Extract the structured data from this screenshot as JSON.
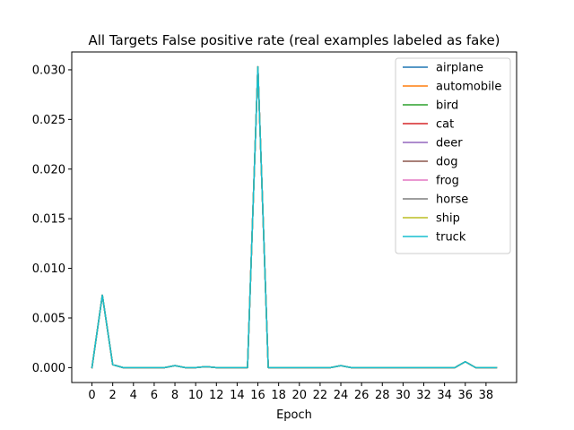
{
  "chart_data": {
    "type": "line",
    "title": "All Targets False positive rate (real examples labeled as fake)",
    "xlabel": "Epoch",
    "ylabel": "",
    "xlim": [
      -1.95,
      40.95
    ],
    "ylim": [
      -0.0015,
      0.0318
    ],
    "x_ticks": [
      0,
      2,
      4,
      6,
      8,
      10,
      12,
      14,
      16,
      18,
      20,
      22,
      24,
      26,
      28,
      30,
      32,
      34,
      36,
      38
    ],
    "y_ticks": [
      0.0,
      0.005,
      0.01,
      0.015,
      0.02,
      0.025,
      0.03
    ],
    "y_tick_labels": [
      "0.000",
      "0.005",
      "0.010",
      "0.015",
      "0.020",
      "0.025",
      "0.030"
    ],
    "grid": false,
    "legend_position": "top-right",
    "x": [
      0,
      1,
      2,
      3,
      4,
      5,
      6,
      7,
      8,
      9,
      10,
      11,
      12,
      13,
      14,
      15,
      16,
      17,
      18,
      19,
      20,
      21,
      22,
      23,
      24,
      25,
      26,
      27,
      28,
      29,
      30,
      31,
      32,
      33,
      34,
      35,
      36,
      37,
      38,
      39
    ],
    "series": [
      {
        "name": "airplane",
        "color": "#1f77b4",
        "values": [
          0,
          0.0073,
          0.0003,
          0,
          0,
          0,
          0,
          0,
          0.0002,
          0,
          0,
          0.0001,
          0,
          0,
          0,
          0,
          0.0303,
          0,
          0,
          0,
          0,
          0,
          0,
          0,
          0.0002,
          0,
          0,
          0,
          0,
          0,
          0,
          0,
          0,
          0,
          0,
          0,
          0.0006,
          0,
          0,
          0
        ]
      },
      {
        "name": "automobile",
        "color": "#ff7f0e",
        "values": [
          0,
          0.0073,
          0.0003,
          0,
          0,
          0,
          0,
          0,
          0.0002,
          0,
          0,
          0.0001,
          0,
          0,
          0,
          0,
          0.0303,
          0,
          0,
          0,
          0,
          0,
          0,
          0,
          0.0002,
          0,
          0,
          0,
          0,
          0,
          0,
          0,
          0,
          0,
          0,
          0,
          0.0006,
          0,
          0,
          0
        ]
      },
      {
        "name": "bird",
        "color": "#2ca02c",
        "values": [
          0,
          0.0073,
          0.0003,
          0,
          0,
          0,
          0,
          0,
          0.0002,
          0,
          0,
          0.0001,
          0,
          0,
          0,
          0,
          0.0303,
          0,
          0,
          0,
          0,
          0,
          0,
          0,
          0.0002,
          0,
          0,
          0,
          0,
          0,
          0,
          0,
          0,
          0,
          0,
          0,
          0.0006,
          0,
          0,
          0
        ]
      },
      {
        "name": "cat",
        "color": "#d62728",
        "values": [
          0,
          0.0073,
          0.0003,
          0,
          0,
          0,
          0,
          0,
          0.0002,
          0,
          0,
          0.0001,
          0,
          0,
          0,
          0,
          0.0303,
          0,
          0,
          0,
          0,
          0,
          0,
          0,
          0.0002,
          0,
          0,
          0,
          0,
          0,
          0,
          0,
          0,
          0,
          0,
          0,
          0.0006,
          0,
          0,
          0
        ]
      },
      {
        "name": "deer",
        "color": "#9467bd",
        "values": [
          0,
          0.0073,
          0.0003,
          0,
          0,
          0,
          0,
          0,
          0.0002,
          0,
          0,
          0.0001,
          0,
          0,
          0,
          0,
          0.0303,
          0,
          0,
          0,
          0,
          0,
          0,
          0,
          0.0002,
          0,
          0,
          0,
          0,
          0,
          0,
          0,
          0,
          0,
          0,
          0,
          0.0006,
          0,
          0,
          0
        ]
      },
      {
        "name": "dog",
        "color": "#8c564b",
        "values": [
          0,
          0.0073,
          0.0003,
          0,
          0,
          0,
          0,
          0,
          0.0002,
          0,
          0,
          0.0001,
          0,
          0,
          0,
          0,
          0.0303,
          0,
          0,
          0,
          0,
          0,
          0,
          0,
          0.0002,
          0,
          0,
          0,
          0,
          0,
          0,
          0,
          0,
          0,
          0,
          0,
          0.0006,
          0,
          0,
          0
        ]
      },
      {
        "name": "frog",
        "color": "#e377c2",
        "values": [
          0,
          0.0073,
          0.0003,
          0,
          0,
          0,
          0,
          0,
          0.0002,
          0,
          0,
          0.0001,
          0,
          0,
          0,
          0,
          0.0303,
          0,
          0,
          0,
          0,
          0,
          0,
          0,
          0.0002,
          0,
          0,
          0,
          0,
          0,
          0,
          0,
          0,
          0,
          0,
          0,
          0.0006,
          0,
          0,
          0
        ]
      },
      {
        "name": "horse",
        "color": "#7f7f7f",
        "values": [
          0,
          0.0073,
          0.0003,
          0,
          0,
          0,
          0,
          0,
          0.0002,
          0,
          0,
          0.0001,
          0,
          0,
          0,
          0,
          0.0303,
          0,
          0,
          0,
          0,
          0,
          0,
          0,
          0.0002,
          0,
          0,
          0,
          0,
          0,
          0,
          0,
          0,
          0,
          0,
          0,
          0.0006,
          0,
          0,
          0
        ]
      },
      {
        "name": "ship",
        "color": "#bcbd22",
        "values": [
          0,
          0.0073,
          0.0003,
          0,
          0,
          0,
          0,
          0,
          0.0002,
          0,
          0,
          0.0001,
          0,
          0,
          0,
          0,
          0.0303,
          0,
          0,
          0,
          0,
          0,
          0,
          0,
          0.0002,
          0,
          0,
          0,
          0,
          0,
          0,
          0,
          0,
          0,
          0,
          0,
          0.0006,
          0,
          0,
          0
        ]
      },
      {
        "name": "truck",
        "color": "#17becf",
        "values": [
          0,
          0.0073,
          0.0003,
          0,
          0,
          0,
          0,
          0,
          0.0002,
          0,
          0,
          0.0001,
          0,
          0,
          0,
          0,
          0.0303,
          0,
          0,
          0,
          0,
          0,
          0,
          0,
          0.0002,
          0,
          0,
          0,
          0,
          0,
          0,
          0,
          0,
          0,
          0,
          0,
          0.0006,
          0,
          0,
          0
        ]
      }
    ]
  }
}
